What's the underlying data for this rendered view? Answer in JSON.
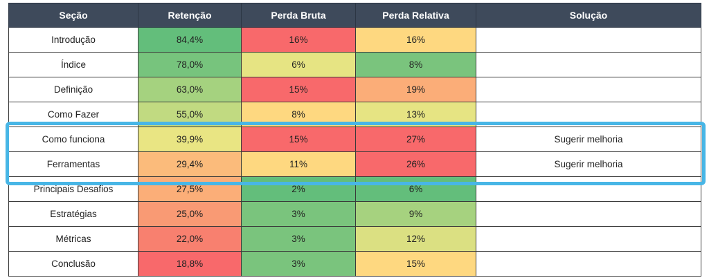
{
  "headers": [
    "Seção",
    "Retenção",
    "Perda Bruta",
    "Perda Relativa",
    "Solução"
  ],
  "rows": [
    {
      "secao": "Introdução",
      "retencao": "84,4%",
      "perda_bruta": "16%",
      "perda_relativa": "16%",
      "solucao": "",
      "colors": {
        "retencao": "#63be7b",
        "perda_bruta": "#f8696b",
        "perda_relativa": "#fed880"
      }
    },
    {
      "secao": "Índice",
      "retencao": "78,0%",
      "perda_bruta": "6%",
      "perda_relativa": "8%",
      "solucao": "",
      "colors": {
        "retencao": "#77c47d",
        "perda_bruta": "#e6e483",
        "perda_relativa": "#7ac47d"
      }
    },
    {
      "secao": "Definição",
      "retencao": "63,0%",
      "perda_bruta": "15%",
      "perda_relativa": "19%",
      "solucao": "",
      "colors": {
        "retencao": "#a5d27f",
        "perda_bruta": "#f8696b",
        "perda_relativa": "#fbad78"
      }
    },
    {
      "secao": "Como Fazer",
      "retencao": "55,0%",
      "perda_bruta": "8%",
      "perda_relativa": "13%",
      "solucao": "",
      "colors": {
        "retencao": "#c1da81",
        "perda_bruta": "#fed880",
        "perda_relativa": "#e6e483"
      }
    },
    {
      "secao": "Como funciona",
      "retencao": "39,9%",
      "perda_bruta": "15%",
      "perda_relativa": "27%",
      "solucao": "Sugerir melhoria",
      "colors": {
        "retencao": "#e9e583",
        "perda_bruta": "#f8696b",
        "perda_relativa": "#f8696b"
      }
    },
    {
      "secao": "Ferramentas",
      "retencao": "29,4%",
      "perda_bruta": "11%",
      "perda_relativa": "26%",
      "solucao": "Sugerir melhoria",
      "colors": {
        "retencao": "#fbbb7b",
        "perda_bruta": "#fed880",
        "perda_relativa": "#f8696b"
      }
    },
    {
      "secao": "Principais Desafios",
      "retencao": "27,5%",
      "perda_bruta": "2%",
      "perda_relativa": "6%",
      "solucao": "",
      "colors": {
        "retencao": "#fbae78",
        "perda_bruta": "#63be7b",
        "perda_relativa": "#63be7b"
      }
    },
    {
      "secao": "Estratégias",
      "retencao": "25,0%",
      "perda_bruta": "3%",
      "perda_relativa": "9%",
      "solucao": "",
      "colors": {
        "retencao": "#f99a74",
        "perda_bruta": "#7ac47d",
        "perda_relativa": "#a6d27f"
      }
    },
    {
      "secao": "Métricas",
      "retencao": "22,0%",
      "perda_bruta": "3%",
      "perda_relativa": "12%",
      "solucao": "",
      "colors": {
        "retencao": "#f8806f",
        "perda_bruta": "#7ac47d",
        "perda_relativa": "#dbe082"
      }
    },
    {
      "secao": "Conclusão",
      "retencao": "18,8%",
      "perda_bruta": "3%",
      "perda_relativa": "15%",
      "solucao": "",
      "colors": {
        "retencao": "#f8696b",
        "perda_bruta": "#7ac47d",
        "perda_relativa": "#fed880"
      }
    }
  ],
  "highlight_color": "#48b6e6",
  "header_bg": "#3e4a5b"
}
